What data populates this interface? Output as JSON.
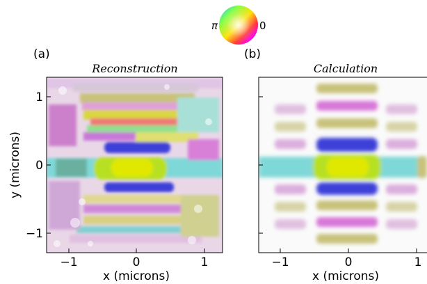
{
  "colorwheel": {
    "left_label": "π",
    "right_label": "0"
  },
  "panels": [
    {
      "letter": "(a)",
      "title": "Reconstruction",
      "xlabel": "x (microns)",
      "ylabel": "y (microns)",
      "xticks": [
        "−1",
        "0",
        "1"
      ],
      "yticks": [
        "1",
        "0",
        "−1"
      ]
    },
    {
      "letter": "(b)",
      "title": "Calculation",
      "xlabel": "x (microns)",
      "xticks": [
        "−1",
        "0",
        "1"
      ]
    }
  ],
  "colors": {
    "yellow_green": "#c8e63c",
    "magenta": "#d877d8",
    "blue": "#3c40d8",
    "cyan": "#7fd8d8",
    "olive": "#c8c27a"
  }
}
